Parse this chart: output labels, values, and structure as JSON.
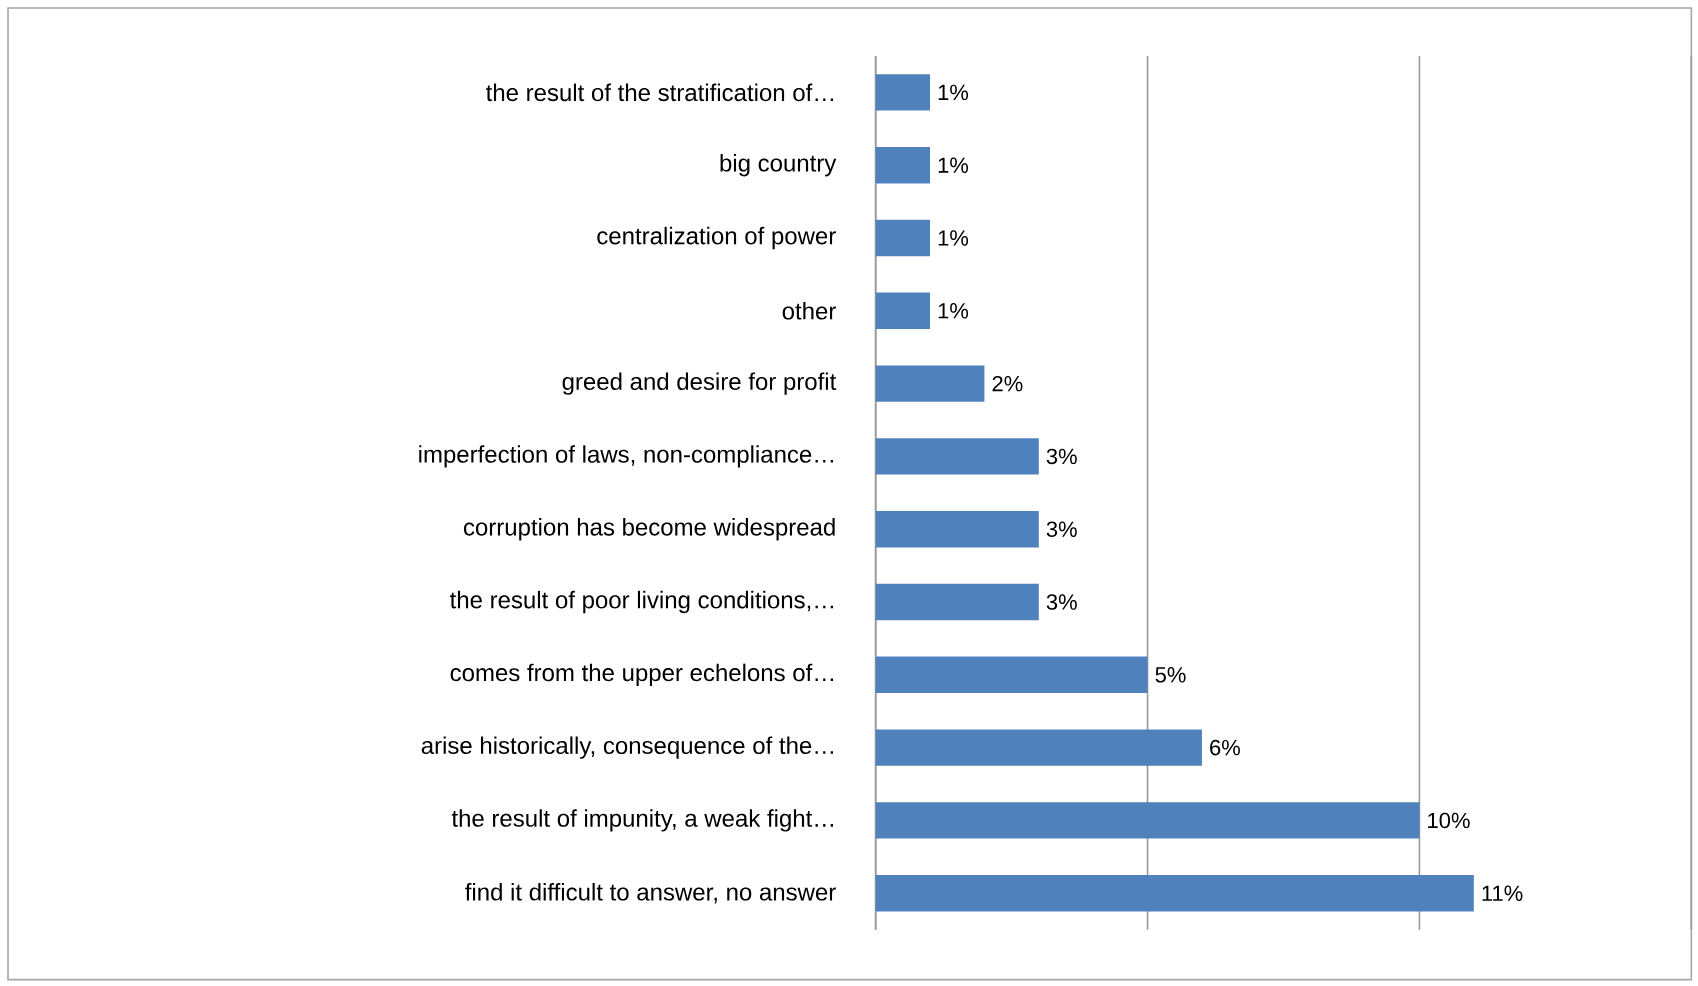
{
  "chart_data": {
    "type": "bar",
    "orientation": "horizontal",
    "categories": [
      "the result of the stratification of…",
      "big country",
      "centralization of power",
      "other",
      "greed and desire for profit",
      "imperfection of laws, non-compliance…",
      "corruption has become widespread",
      "the result of poor living conditions,…",
      "comes from the upper echelons of…",
      "arise historically, consequence of the…",
      "the result of impunity, a weak fight…",
      "find it difficult to answer, no answer"
    ],
    "values": [
      1,
      1,
      1,
      1,
      2,
      3,
      3,
      3,
      5,
      6,
      10,
      11
    ],
    "value_labels": [
      "1%",
      "1%",
      "1%",
      "1%",
      "2%",
      "3%",
      "3%",
      "3%",
      "5%",
      "6%",
      "10%",
      "11%"
    ],
    "color": "#4f81bd",
    "xlim": [
      0,
      15
    ],
    "xticks": [
      {
        "value": 0,
        "label": null
      },
      {
        "value": 5,
        "label": null
      },
      {
        "value": 10,
        "label": null
      },
      {
        "value": 15,
        "label": null
      }
    ],
    "grid": "x",
    "tick_labels": "y"
  }
}
